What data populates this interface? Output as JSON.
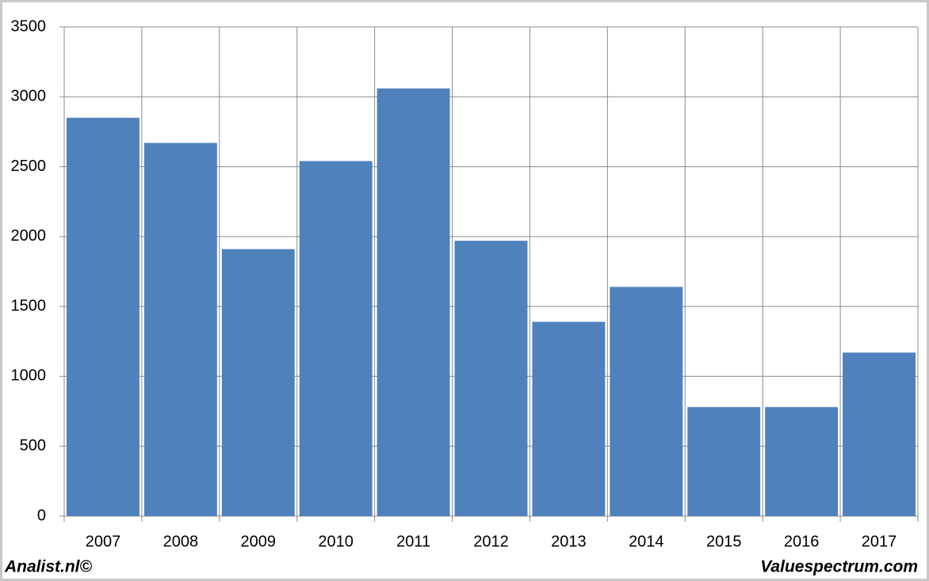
{
  "chart_data": {
    "type": "bar",
    "categories": [
      "2007",
      "2008",
      "2009",
      "2010",
      "2011",
      "2012",
      "2013",
      "2014",
      "2015",
      "2016",
      "2017"
    ],
    "values": [
      2850,
      2670,
      1910,
      2540,
      3060,
      1970,
      1390,
      1640,
      780,
      780,
      1170
    ],
    "color": "#4f81bd",
    "ylim": [
      0,
      3500
    ],
    "yticks": [
      0,
      500,
      1000,
      1500,
      2000,
      2500,
      3000,
      3500
    ],
    "grid": true,
    "annotations": [
      "Analist.nl©",
      "Valuespectrum.com"
    ]
  }
}
